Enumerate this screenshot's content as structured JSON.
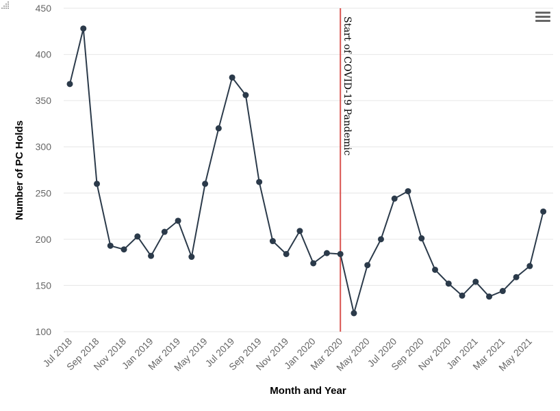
{
  "chart_data": {
    "type": "line",
    "title": "",
    "xlabel": "Month and Year",
    "ylabel": "Number of PC Holds",
    "ylim": [
      100,
      450
    ],
    "yticks": [
      100,
      150,
      200,
      250,
      300,
      350,
      400,
      450
    ],
    "grid": true,
    "categories": [
      "Jul 2018",
      "Aug 2018",
      "Sep 2018",
      "Oct 2018",
      "Nov 2018",
      "Dec 2018",
      "Jan 2019",
      "Feb 2019",
      "Mar 2019",
      "Apr 2019",
      "May 2019",
      "Jun 2019",
      "Jul 2019",
      "Aug 2019",
      "Sep 2019",
      "Oct 2019",
      "Nov 2019",
      "Dec 2019",
      "Jan 2020",
      "Feb 2020",
      "Mar 2020",
      "Apr 2020",
      "May 2020",
      "Jun 2020",
      "Jul 2020",
      "Aug 2020",
      "Sep 2020",
      "Oct 2020",
      "Nov 2020",
      "Dec 2020",
      "Jan 2021",
      "Feb 2021",
      "Mar 2021",
      "Apr 2021",
      "May 2021",
      "Jun 2021"
    ],
    "xtick_labels": [
      "Jul 2018",
      "Sep 2018",
      "Nov 2018",
      "Jan 2019",
      "Mar 2019",
      "May 2019",
      "Jul 2019",
      "Sep 2019",
      "Nov 2019",
      "Jan 2020",
      "Mar 2020",
      "May 2020",
      "Jul 2020",
      "Sep 2020",
      "Nov 2020",
      "Jan 2021",
      "Mar 2021",
      "May 2021"
    ],
    "series": [
      {
        "values": [
          368,
          428,
          260,
          193,
          189,
          203,
          182,
          208,
          220,
          181,
          260,
          320,
          375,
          356,
          262,
          198,
          184,
          209,
          174,
          185,
          184,
          120,
          172,
          200,
          244,
          252,
          201,
          167,
          152,
          139,
          154,
          138,
          144,
          159,
          171,
          230
        ],
        "color": "#2b3a4a"
      }
    ],
    "annotations": [
      {
        "text": "Start of COVID-19 Pandemic",
        "x": "Mar 2020",
        "color": "#d9534f"
      }
    ]
  },
  "toolbar": {
    "menu_icon": "hamburger-menu-icon"
  }
}
